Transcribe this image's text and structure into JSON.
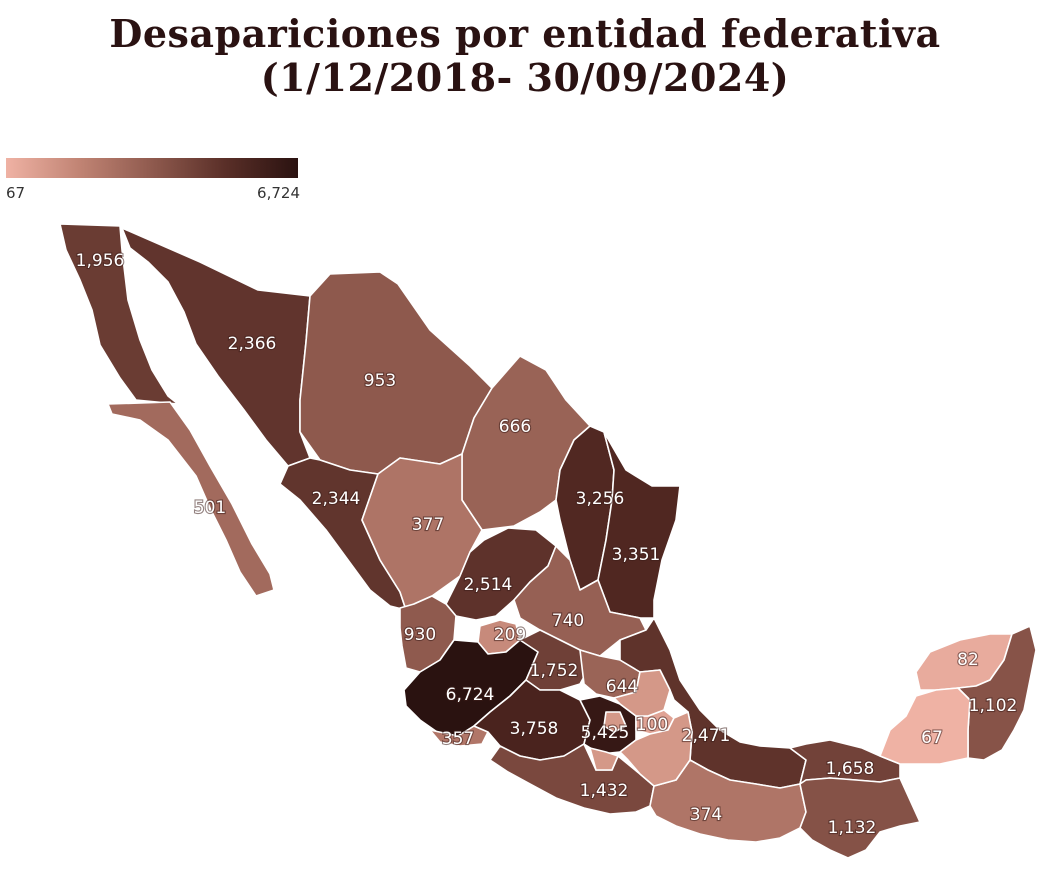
{
  "title": {
    "line1": "Desapariciones por entidad federativa",
    "line2": "(1/12/2018- 30/09/2024)"
  },
  "legend": {
    "min_label": "67",
    "max_label": "6,724",
    "min_value": 67,
    "max_value": 6724,
    "color_low": "#efb2a4",
    "color_high": "#2a1210"
  },
  "map": {
    "states": [
      {
        "id": "baja-california",
        "value": 1956,
        "label": "1,956"
      },
      {
        "id": "sonora",
        "value": 2366,
        "label": "2,366"
      },
      {
        "id": "chihuahua",
        "value": 953,
        "label": "953"
      },
      {
        "id": "coahuila",
        "value": 666,
        "label": "666"
      },
      {
        "id": "baja-california-sur",
        "value": 501,
        "label": "501"
      },
      {
        "id": "nuevo-leon",
        "value": 3256,
        "label": "3,256"
      },
      {
        "id": "sinaloa",
        "value": 2344,
        "label": "2,344"
      },
      {
        "id": "durango",
        "value": 377,
        "label": "377"
      },
      {
        "id": "tamaulipas",
        "value": 3351,
        "label": "3,351"
      },
      {
        "id": "zacatecas",
        "value": 2514,
        "label": "2,514"
      },
      {
        "id": "san-luis-potosi",
        "value": 740,
        "label": "740"
      },
      {
        "id": "nayarit",
        "value": 930,
        "label": "930"
      },
      {
        "id": "aguascalientes",
        "value": 209,
        "label": "209"
      },
      {
        "id": "guanajuato",
        "value": 1752,
        "label": "1,752"
      },
      {
        "id": "queretaro",
        "value": 644,
        "label": "644"
      },
      {
        "id": "jalisco",
        "value": 6724,
        "label": "6,724"
      },
      {
        "id": "colima",
        "value": 357,
        "label": "357"
      },
      {
        "id": "michoacan",
        "value": 3758,
        "label": "3,758"
      },
      {
        "id": "estado-de-mexico",
        "value": 5425,
        "label": "5,425"
      },
      {
        "id": "tlaxcala",
        "value": 100,
        "label": "100"
      },
      {
        "id": "veracruz",
        "value": 2471,
        "label": "2,471"
      },
      {
        "id": "guerrero",
        "value": 1432,
        "label": "1,432"
      },
      {
        "id": "oaxaca",
        "value": 374,
        "label": "374"
      },
      {
        "id": "tabasco",
        "value": 1658,
        "label": "1,658"
      },
      {
        "id": "chiapas",
        "value": 1132,
        "label": "1,132"
      },
      {
        "id": "yucatan",
        "value": 82,
        "label": "82"
      },
      {
        "id": "quintana-roo",
        "value": 1102,
        "label": "1,102"
      },
      {
        "id": "campeche",
        "value": 67,
        "label": "67"
      },
      {
        "id": "hidalgo",
        "value": null,
        "label": ""
      },
      {
        "id": "puebla",
        "value": null,
        "label": ""
      },
      {
        "id": "morelos",
        "value": null,
        "label": ""
      },
      {
        "id": "cdmx",
        "value": null,
        "label": ""
      }
    ]
  }
}
